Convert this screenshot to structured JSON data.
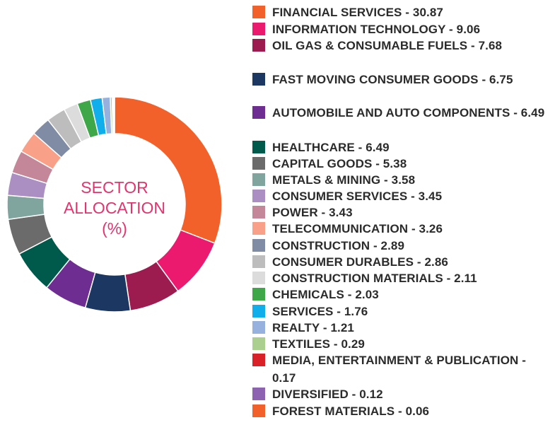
{
  "center_label": {
    "line1": "SECTOR",
    "line2": "ALLOCATION",
    "line3": "(%)"
  },
  "chart_data": {
    "type": "pie",
    "donut": true,
    "title": "SECTOR ALLOCATION (%)",
    "legend_position": "right",
    "slices": [
      {
        "label": "FINANCIAL SERVICES - 30.87",
        "name": "FINANCIAL SERVICES",
        "value": 30.87,
        "color": "#f26129"
      },
      {
        "label": "INFORMATION TECHNOLOGY - 9.06",
        "name": "INFORMATION TECHNOLOGY",
        "value": 9.06,
        "color": "#eb1a6f"
      },
      {
        "label": "OIL GAS & CONSUMABLE FUELS - 7.68",
        "name": "OIL GAS & CONSUMABLE FUELS",
        "value": 7.68,
        "color": "#9c1c4f"
      },
      {
        "label": "FAST MOVING CONSUMER GOODS - 6.75",
        "name": "FAST MOVING CONSUMER GOODS",
        "value": 6.75,
        "color": "#1c3761"
      },
      {
        "label": "AUTOMOBILE AND AUTO COMPONENTS - 6.49",
        "name": "AUTOMOBILE AND AUTO COMPONENTS",
        "value": 6.49,
        "color": "#6d2d91"
      },
      {
        "label": "HEALTHCARE - 6.49",
        "name": "HEALTHCARE",
        "value": 6.49,
        "color": "#005a4b"
      },
      {
        "label": "CAPITAL GOODS - 5.38",
        "name": "CAPITAL GOODS",
        "value": 5.38,
        "color": "#6b6b6b"
      },
      {
        "label": "METALS & MINING - 3.58",
        "name": "METALS & MINING",
        "value": 3.58,
        "color": "#80a59e"
      },
      {
        "label": "CONSUMER SERVICES - 3.45",
        "name": "CONSUMER SERVICES",
        "value": 3.45,
        "color": "#ab8fc3"
      },
      {
        "label": "POWER - 3.43",
        "name": "POWER",
        "value": 3.43,
        "color": "#c4879a"
      },
      {
        "label": "TELECOMMUNICATION - 3.26",
        "name": "TELECOMMUNICATION",
        "value": 3.26,
        "color": "#f8a188"
      },
      {
        "label": "CONSTRUCTION - 2.89",
        "name": "CONSTRUCTION",
        "value": 2.89,
        "color": "#7f8ca3"
      },
      {
        "label": "CONSUMER DURABLES - 2.86",
        "name": "CONSUMER DURABLES",
        "value": 2.86,
        "color": "#bdbdbd"
      },
      {
        "label": "CONSTRUCTION MATERIALS - 2.11",
        "name": "CONSTRUCTION MATERIALS",
        "value": 2.11,
        "color": "#dcdcdc"
      },
      {
        "label": "CHEMICALS - 2.03",
        "name": "CHEMICALS",
        "value": 2.03,
        "color": "#3ea848"
      },
      {
        "label": "SERVICES - 1.76",
        "name": "SERVICES",
        "value": 1.76,
        "color": "#10aeea"
      },
      {
        "label": "REALTY - 1.21",
        "name": "REALTY",
        "value": 1.21,
        "color": "#97b1df"
      },
      {
        "label": "TEXTILES - 0.29",
        "name": "TEXTILES",
        "value": 0.29,
        "color": "#aacf8e"
      },
      {
        "label": "MEDIA, ENTERTAINMENT & PUBLICATION - 0.17",
        "name": "MEDIA, ENTERTAINMENT & PUBLICATION",
        "value": 0.17,
        "color": "#d92128"
      },
      {
        "label": "DIVERSIFIED - 0.12",
        "name": "DIVERSIFIED",
        "value": 0.12,
        "color": "#8d62b0"
      },
      {
        "label": "FOREST MATERIALS - 0.06",
        "name": "FOREST MATERIALS",
        "value": 0.06,
        "color": "#f26129"
      }
    ]
  }
}
